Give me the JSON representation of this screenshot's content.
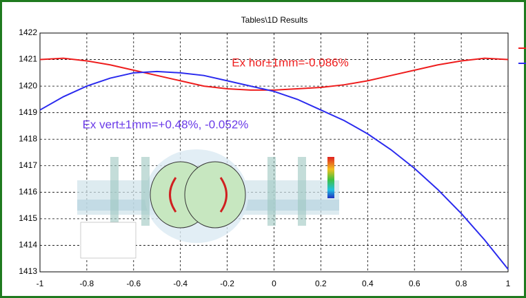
{
  "chart_data": {
    "type": "line",
    "title": "Tables\\1D Results",
    "x": [
      -1,
      -0.9,
      -0.8,
      -0.7,
      -0.6,
      -0.5,
      -0.4,
      -0.3,
      -0.2,
      -0.1,
      0,
      0.1,
      0.2,
      0.3,
      0.4,
      0.5,
      0.6,
      0.7,
      0.8,
      0.9,
      1
    ],
    "series": [
      {
        "color": "#ee1c1c",
        "values": [
          1421.0,
          1421.05,
          1420.95,
          1420.8,
          1420.6,
          1420.4,
          1420.2,
          1420.0,
          1419.9,
          1419.85,
          1419.85,
          1419.9,
          1419.95,
          1420.05,
          1420.2,
          1420.4,
          1420.6,
          1420.8,
          1420.95,
          1421.05,
          1421.0
        ]
      },
      {
        "color": "#2a2aee",
        "values": [
          1419.1,
          1419.6,
          1420.0,
          1420.3,
          1420.5,
          1420.55,
          1420.5,
          1420.4,
          1420.2,
          1420.0,
          1419.8,
          1419.5,
          1419.1,
          1418.7,
          1418.2,
          1417.6,
          1416.9,
          1416.1,
          1415.2,
          1414.2,
          1413.1
        ]
      }
    ],
    "xlim": [
      -1,
      1
    ],
    "xticks": [
      -1,
      -0.8,
      -0.6,
      -0.4,
      -0.2,
      0,
      0.2,
      0.4,
      0.6,
      0.8,
      1
    ],
    "ylim": [
      1413,
      1422
    ],
    "yticks": [
      1413,
      1414,
      1415,
      1416,
      1417,
      1418,
      1419,
      1420,
      1421,
      1422
    ],
    "grid": true,
    "annotations": [
      {
        "text": "Ex hor±1mm=-0.086%",
        "color": "#ee1c1c"
      },
      {
        "text": "Ex vert±1mm=+0.48%, -0.052%",
        "color": "#6a3ae8"
      }
    ]
  }
}
